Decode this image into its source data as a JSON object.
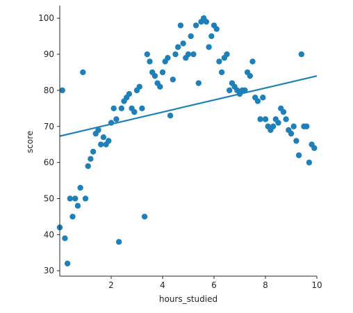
{
  "chart_data": {
    "type": "scatter",
    "title": "",
    "xlabel": "hours_studied",
    "ylabel": "score",
    "xlim": [
      0.0,
      10.0
    ],
    "ylim": [
      28.5,
      103.5
    ],
    "xticks": [
      2,
      4,
      6,
      8,
      10
    ],
    "yticks": [
      30,
      40,
      50,
      60,
      70,
      80,
      90,
      100
    ],
    "grid": false,
    "legend": "none",
    "color": "#1f80b8",
    "series": [
      {
        "points": [
          [
            0.0,
            42
          ],
          [
            0.1,
            80
          ],
          [
            0.2,
            39
          ],
          [
            0.3,
            32
          ],
          [
            0.4,
            50
          ],
          [
            0.5,
            45
          ],
          [
            0.6,
            50
          ],
          [
            0.7,
            48
          ],
          [
            0.8,
            53
          ],
          [
            0.9,
            85
          ],
          [
            1.0,
            50
          ],
          [
            1.1,
            59
          ],
          [
            1.2,
            61
          ],
          [
            1.3,
            63
          ],
          [
            1.4,
            68
          ],
          [
            1.5,
            69
          ],
          [
            1.6,
            65
          ],
          [
            1.7,
            67
          ],
          [
            1.8,
            65
          ],
          [
            1.9,
            66
          ],
          [
            2.0,
            71
          ],
          [
            2.1,
            75
          ],
          [
            2.2,
            72
          ],
          [
            2.3,
            38
          ],
          [
            2.4,
            75
          ],
          [
            2.5,
            77
          ],
          [
            2.6,
            78
          ],
          [
            2.7,
            79
          ],
          [
            2.8,
            75
          ],
          [
            2.9,
            74
          ],
          [
            3.0,
            80
          ],
          [
            3.1,
            81
          ],
          [
            3.2,
            75
          ],
          [
            3.3,
            45
          ],
          [
            3.4,
            90
          ],
          [
            3.5,
            88
          ],
          [
            3.6,
            85
          ],
          [
            3.7,
            84
          ],
          [
            3.8,
            82
          ],
          [
            3.9,
            81
          ],
          [
            4.0,
            85
          ],
          [
            4.1,
            88
          ],
          [
            4.2,
            89
          ],
          [
            4.3,
            73
          ],
          [
            4.4,
            83
          ],
          [
            4.5,
            90
          ],
          [
            4.6,
            92
          ],
          [
            4.7,
            98
          ],
          [
            4.8,
            93
          ],
          [
            4.9,
            89
          ],
          [
            5.0,
            90
          ],
          [
            5.1,
            95
          ],
          [
            5.2,
            90
          ],
          [
            5.3,
            98
          ],
          [
            5.4,
            82
          ],
          [
            5.5,
            99
          ],
          [
            5.6,
            100
          ],
          [
            5.7,
            99
          ],
          [
            5.8,
            92
          ],
          [
            5.9,
            95
          ],
          [
            6.0,
            98
          ],
          [
            6.1,
            97
          ],
          [
            6.2,
            88
          ],
          [
            6.3,
            85
          ],
          [
            6.4,
            89
          ],
          [
            6.5,
            90
          ],
          [
            6.6,
            80
          ],
          [
            6.7,
            82
          ],
          [
            6.8,
            81
          ],
          [
            6.9,
            80
          ],
          [
            7.0,
            79
          ],
          [
            7.1,
            80
          ],
          [
            7.2,
            80
          ],
          [
            7.3,
            85
          ],
          [
            7.4,
            84
          ],
          [
            7.5,
            88
          ],
          [
            7.6,
            78
          ],
          [
            7.7,
            77
          ],
          [
            7.8,
            72
          ],
          [
            7.9,
            78
          ],
          [
            8.0,
            72
          ],
          [
            8.1,
            70
          ],
          [
            8.2,
            69
          ],
          [
            8.3,
            70
          ],
          [
            8.4,
            72
          ],
          [
            8.5,
            71
          ],
          [
            8.6,
            75
          ],
          [
            8.7,
            74
          ],
          [
            8.8,
            72
          ],
          [
            8.9,
            69
          ],
          [
            9.0,
            68
          ],
          [
            9.1,
            70
          ],
          [
            9.2,
            66
          ],
          [
            9.3,
            62
          ],
          [
            9.4,
            90
          ],
          [
            9.5,
            70
          ],
          [
            9.6,
            70
          ],
          [
            9.7,
            60
          ],
          [
            9.8,
            65
          ],
          [
            9.9,
            64
          ]
        ]
      }
    ],
    "regression_line": {
      "x": [
        0.0,
        10.0
      ],
      "y": [
        67.3,
        84.0
      ]
    }
  }
}
